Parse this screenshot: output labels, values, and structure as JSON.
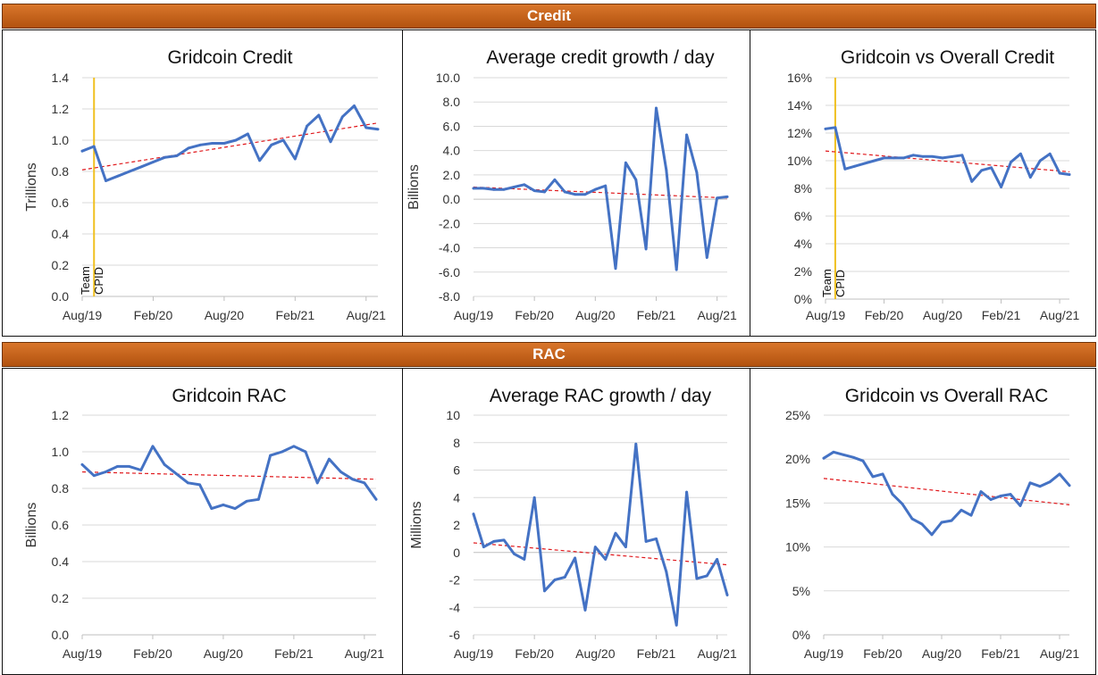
{
  "sections": {
    "credit": "Credit",
    "rac": "RAC"
  },
  "chart_data": [
    {
      "type": "line",
      "title": "Gridcoin Credit",
      "ylabel": "Trillions",
      "ylim": [
        0,
        1.4
      ],
      "yticks": [
        "0.0",
        "0.2",
        "0.4",
        "0.6",
        "0.8",
        "1.0",
        "1.2",
        "1.4"
      ],
      "xticks": [
        "Aug/19",
        "Feb/20",
        "Aug/20",
        "Feb/21",
        "Aug/21"
      ],
      "x_range": [
        "2019-08",
        "2021-09"
      ],
      "grid": true,
      "series": [
        {
          "x": [
            "2019-08",
            "2019-09",
            "2019-10",
            "2019-11",
            "2019-12",
            "2020-01",
            "2020-02",
            "2020-03",
            "2020-04",
            "2020-05",
            "2020-06",
            "2020-07",
            "2020-08",
            "2020-09",
            "2020-10",
            "2020-11",
            "2020-12",
            "2021-01",
            "2021-02",
            "2021-03",
            "2021-04",
            "2021-05",
            "2021-06",
            "2021-07",
            "2021-08",
            "2021-09"
          ],
          "values": [
            0.93,
            0.96,
            0.74,
            0.77,
            0.8,
            0.83,
            0.86,
            0.89,
            0.9,
            0.95,
            0.97,
            0.98,
            0.98,
            1.0,
            1.04,
            0.87,
            0.97,
            1.0,
            0.88,
            1.09,
            1.16,
            0.99,
            1.15,
            1.22,
            1.08,
            1.07
          ],
          "color": "#4472c4"
        }
      ],
      "trendline": {
        "from": 0.81,
        "to": 1.11,
        "color": "#e0171b"
      },
      "marker": {
        "x": "2019-09",
        "color": "#f0c020",
        "labels": [
          "Team",
          "CPID"
        ]
      }
    },
    {
      "type": "line",
      "title": "Average credit growth / day",
      "ylabel": "Billions",
      "ylim": [
        -8,
        10
      ],
      "yticks": [
        "-8.0",
        "-6.0",
        "-4.0",
        "-2.0",
        "0.0",
        "2.0",
        "4.0",
        "6.0",
        "8.0",
        "10.0"
      ],
      "xticks": [
        "Aug/19",
        "Feb/20",
        "Aug/20",
        "Feb/21",
        "Aug/21"
      ],
      "x_range": [
        "2019-08",
        "2021-09"
      ],
      "grid": true,
      "series": [
        {
          "x": [
            "2019-08",
            "2019-09",
            "2019-10",
            "2019-11",
            "2019-12",
            "2020-01",
            "2020-02",
            "2020-03",
            "2020-04",
            "2020-05",
            "2020-06",
            "2020-07",
            "2020-08",
            "2020-09",
            "2020-10",
            "2020-11",
            "2020-12",
            "2021-01",
            "2021-02",
            "2021-03",
            "2021-04",
            "2021-05",
            "2021-06",
            "2021-07",
            "2021-08",
            "2021-09"
          ],
          "values": [
            0.9,
            0.9,
            0.8,
            0.8,
            1.0,
            1.2,
            0.7,
            0.6,
            1.6,
            0.6,
            0.4,
            0.4,
            0.8,
            1.1,
            -5.7,
            3.0,
            1.6,
            -4.1,
            7.5,
            2.4,
            -5.8,
            5.3,
            2.2,
            -4.8,
            0.1,
            0.2
          ],
          "color": "#4472c4"
        }
      ],
      "trendline": {
        "from": 1.0,
        "to": 0.1,
        "color": "#e0171b"
      }
    },
    {
      "type": "line",
      "title": "Gridcoin vs Overall Credit",
      "ylim": [
        0,
        16
      ],
      "yticks": [
        "0%",
        "2%",
        "4%",
        "6%",
        "8%",
        "10%",
        "12%",
        "14%",
        "16%"
      ],
      "xticks": [
        "Aug/19",
        "Feb/20",
        "Aug/20",
        "Feb/21",
        "Aug/21"
      ],
      "x_range": [
        "2019-08",
        "2021-09"
      ],
      "grid": true,
      "series": [
        {
          "x": [
            "2019-08",
            "2019-09",
            "2019-10",
            "2019-11",
            "2019-12",
            "2020-01",
            "2020-02",
            "2020-03",
            "2020-04",
            "2020-05",
            "2020-06",
            "2020-07",
            "2020-08",
            "2020-09",
            "2020-10",
            "2020-11",
            "2020-12",
            "2021-01",
            "2021-02",
            "2021-03",
            "2021-04",
            "2021-05",
            "2021-06",
            "2021-07",
            "2021-08",
            "2021-09"
          ],
          "values": [
            12.3,
            12.4,
            9.4,
            9.6,
            9.8,
            10.0,
            10.2,
            10.2,
            10.2,
            10.4,
            10.3,
            10.3,
            10.2,
            10.3,
            10.4,
            8.5,
            9.3,
            9.5,
            8.1,
            9.9,
            10.5,
            8.8,
            10.0,
            10.5,
            9.1,
            9.0
          ],
          "color": "#4472c4"
        }
      ],
      "trendline": {
        "from": 10.7,
        "to": 9.2,
        "color": "#e0171b"
      },
      "marker": {
        "x": "2019-09",
        "color": "#f0c020",
        "labels": [
          "Team",
          "CPID"
        ]
      }
    },
    {
      "type": "line",
      "title": "Gridcoin RAC",
      "ylabel": "Billions",
      "ylim": [
        0,
        1.2
      ],
      "yticks": [
        "0.0",
        "0.2",
        "0.4",
        "0.6",
        "0.8",
        "1.0",
        "1.2"
      ],
      "xticks": [
        "Aug/19",
        "Feb/20",
        "Aug/20",
        "Feb/21",
        "Aug/21"
      ],
      "x_range": [
        "2019-08",
        "2021-09"
      ],
      "grid": true,
      "series": [
        {
          "x": [
            "2019-08",
            "2019-09",
            "2019-10",
            "2019-11",
            "2019-12",
            "2020-01",
            "2020-02",
            "2020-03",
            "2020-04",
            "2020-05",
            "2020-06",
            "2020-07",
            "2020-08",
            "2020-09",
            "2020-10",
            "2020-11",
            "2020-12",
            "2021-01",
            "2021-02",
            "2021-03",
            "2021-04",
            "2021-05",
            "2021-06",
            "2021-07",
            "2021-08",
            "2021-09"
          ],
          "values": [
            0.93,
            0.87,
            0.89,
            0.92,
            0.92,
            0.9,
            1.03,
            0.93,
            0.88,
            0.83,
            0.82,
            0.69,
            0.71,
            0.69,
            0.73,
            0.74,
            0.98,
            1.0,
            1.03,
            1.0,
            0.83,
            0.96,
            0.89,
            0.85,
            0.83,
            0.74
          ],
          "color": "#4472c4"
        }
      ],
      "trendline": {
        "from": 0.89,
        "to": 0.85,
        "color": "#e0171b"
      }
    },
    {
      "type": "line",
      "title": "Average RAC growth / day",
      "ylabel": "Millions",
      "ylim": [
        -6,
        10
      ],
      "yticks": [
        "-6",
        "-4",
        "-2",
        "0",
        "2",
        "4",
        "6",
        "8",
        "10"
      ],
      "xticks": [
        "Aug/19",
        "Feb/20",
        "Aug/20",
        "Feb/21",
        "Aug/21"
      ],
      "x_range": [
        "2019-08",
        "2021-09"
      ],
      "grid": true,
      "series": [
        {
          "x": [
            "2019-08",
            "2019-09",
            "2019-10",
            "2019-11",
            "2019-12",
            "2020-01",
            "2020-02",
            "2020-03",
            "2020-04",
            "2020-05",
            "2020-06",
            "2020-07",
            "2020-08",
            "2020-09",
            "2020-10",
            "2020-11",
            "2020-12",
            "2021-01",
            "2021-02",
            "2021-03",
            "2021-04",
            "2021-05",
            "2021-06",
            "2021-07",
            "2021-08",
            "2021-09"
          ],
          "values": [
            2.8,
            0.4,
            0.8,
            0.9,
            -0.1,
            -0.5,
            4.0,
            -2.8,
            -2.0,
            -1.8,
            -0.4,
            -4.2,
            0.4,
            -0.5,
            1.4,
            0.4,
            7.9,
            0.8,
            1.0,
            -1.4,
            -5.3,
            4.4,
            -1.9,
            -1.7,
            -0.5,
            -3.1
          ],
          "color": "#4472c4"
        }
      ],
      "trendline": {
        "from": 0.7,
        "to": -0.9,
        "color": "#e0171b"
      }
    },
    {
      "type": "line",
      "title": "Gridcoin vs Overall RAC",
      "ylim": [
        0,
        25
      ],
      "yticks": [
        "0%",
        "5%",
        "10%",
        "15%",
        "20%",
        "25%"
      ],
      "xticks": [
        "Aug/19",
        "Feb/20",
        "Aug/20",
        "Feb/21",
        "Aug/21"
      ],
      "x_range": [
        "2019-08",
        "2021-09"
      ],
      "grid": true,
      "series": [
        {
          "x": [
            "2019-08",
            "2019-09",
            "2019-10",
            "2019-11",
            "2019-12",
            "2020-01",
            "2020-02",
            "2020-03",
            "2020-04",
            "2020-05",
            "2020-06",
            "2020-07",
            "2020-08",
            "2020-09",
            "2020-10",
            "2020-11",
            "2020-12",
            "2021-01",
            "2021-02",
            "2021-03",
            "2021-04",
            "2021-05",
            "2021-06",
            "2021-07",
            "2021-08",
            "2021-09"
          ],
          "values": [
            20.1,
            20.8,
            20.5,
            20.2,
            19.8,
            18.0,
            18.3,
            16.0,
            14.9,
            13.2,
            12.6,
            11.4,
            12.8,
            13.0,
            14.2,
            13.6,
            16.3,
            15.4,
            15.8,
            16.0,
            14.7,
            17.3,
            16.9,
            17.4,
            18.3,
            17.0
          ],
          "color": "#4472c4"
        }
      ],
      "trendline": {
        "from": 17.8,
        "to": 14.8,
        "color": "#e0171b"
      }
    }
  ]
}
